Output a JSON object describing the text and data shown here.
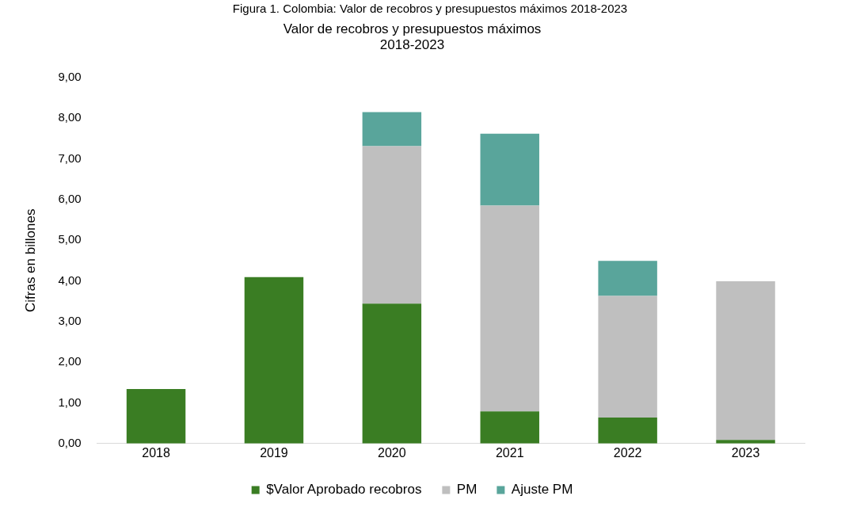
{
  "chart_data": {
    "type": "bar",
    "title": "Valor de recobros y presupuestos máximos\n2018-2023",
    "ylabel": "Cifras en billones",
    "annotations": [
      "Figura 1. Colombia: Valor de recobros y presupuestos máximos 2018-2023"
    ],
    "categories": [
      "2018",
      "2019",
      "2020",
      "2021",
      "2022",
      "2023"
    ],
    "stacked": true,
    "series": [
      {
        "name": "$Valor Aprobado recobros",
        "color": "#3a7d23",
        "values": [
          1.34,
          4.09,
          3.44,
          0.79,
          0.64,
          0.09
        ]
      },
      {
        "name": "PM",
        "color": "#bfbfbf",
        "values": [
          null,
          null,
          3.87,
          5.06,
          2.99,
          3.9
        ]
      },
      {
        "name": "Ajuste PM",
        "color": "#59a59b",
        "values": [
          null,
          null,
          0.84,
          1.77,
          0.86,
          null
        ]
      }
    ],
    "ylim": [
      0,
      9
    ],
    "yticks": [
      {
        "value": 0,
        "label": "0,00"
      },
      {
        "value": 1,
        "label": "1,00"
      },
      {
        "value": 2,
        "label": "2,00"
      },
      {
        "value": 3,
        "label": "3,00"
      },
      {
        "value": 4,
        "label": "4,00"
      },
      {
        "value": 5,
        "label": "5,00"
      },
      {
        "value": 6,
        "label": "6,00"
      },
      {
        "value": 7,
        "label": "7,00"
      },
      {
        "value": 8,
        "label": "8,00"
      },
      {
        "value": 9,
        "label": "9,00"
      }
    ],
    "grid": false,
    "legend": "bottom"
  }
}
